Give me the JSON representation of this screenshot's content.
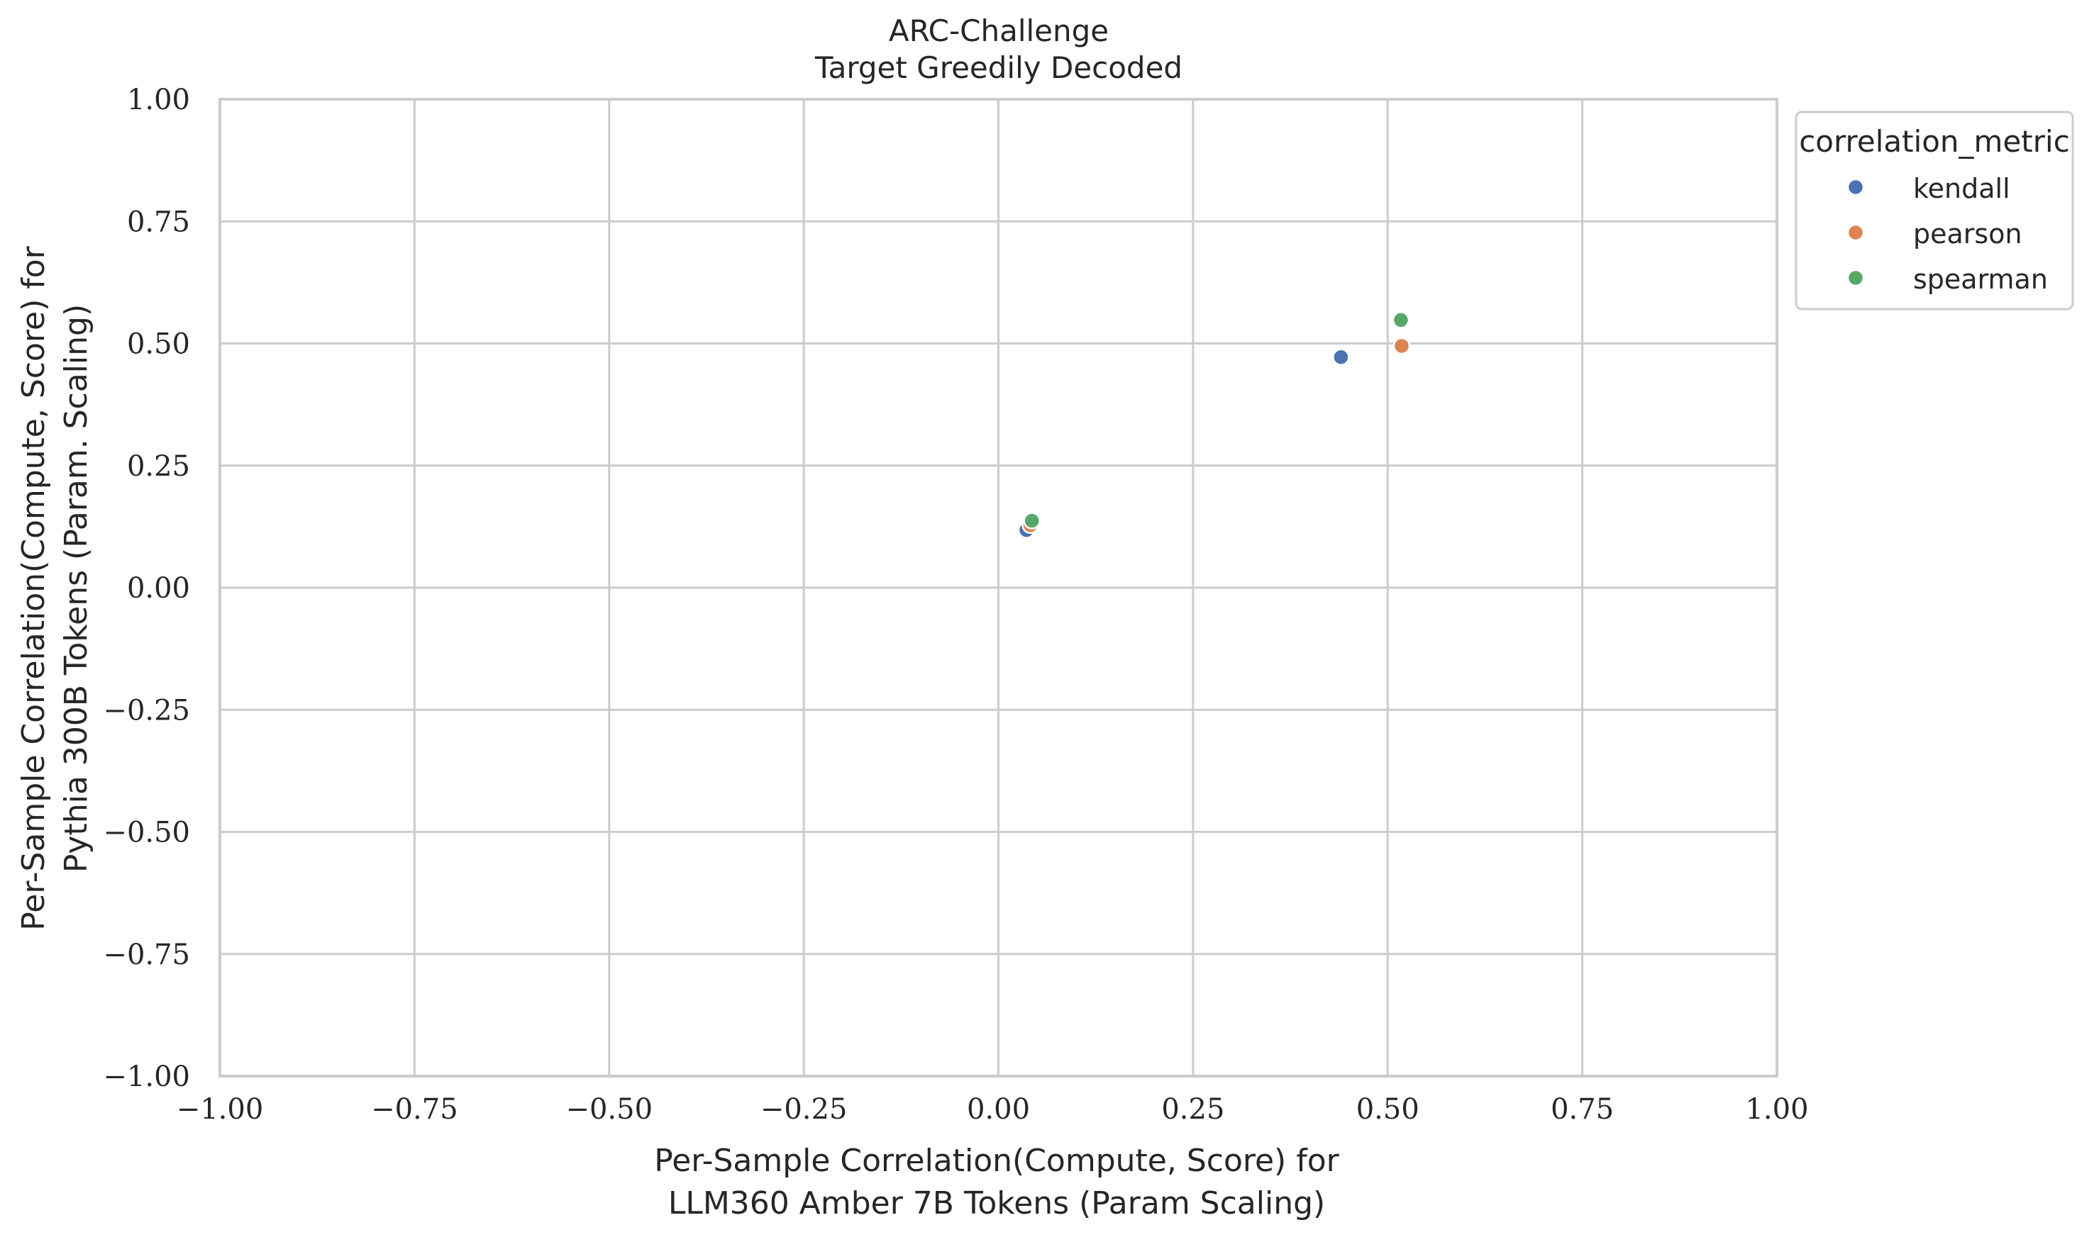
{
  "chart_data": {
    "type": "scatter",
    "title": [
      "ARC-Challenge",
      "Target Greedily Decoded"
    ],
    "xlabel": [
      "Per-Sample Correlation(Compute, Score) for",
      "LLM360 Amber 7B Tokens (Param Scaling)"
    ],
    "ylabel": [
      "Per-Sample Correlation(Compute, Score) for",
      "Pythia 300B Tokens (Param. Scaling)"
    ],
    "xlim": [
      -1.0,
      1.0
    ],
    "ylim": [
      -1.0,
      1.0
    ],
    "xticks": [
      -1.0,
      -0.75,
      -0.5,
      -0.25,
      0.0,
      0.25,
      0.5,
      0.75,
      1.0
    ],
    "yticks": [
      -1.0,
      -0.75,
      -0.5,
      -0.25,
      0.0,
      0.25,
      0.5,
      0.75,
      1.0
    ],
    "xtick_labels": [
      "−1.00",
      "−0.75",
      "−0.50",
      "−0.25",
      "0.00",
      "0.25",
      "0.50",
      "0.75",
      "1.00"
    ],
    "ytick_labels": [
      "−1.00",
      "−0.75",
      "−0.50",
      "−0.25",
      "0.00",
      "0.25",
      "0.50",
      "0.75",
      "1.00"
    ],
    "grid": true,
    "legend": {
      "title": "correlation_metric",
      "placement": "outside-top-right"
    },
    "series": [
      {
        "name": "kendall",
        "color": "#4c72b0",
        "points": [
          [
            0.036,
            0.118
          ],
          [
            0.44,
            0.472
          ]
        ]
      },
      {
        "name": "pearson",
        "color": "#dd8452",
        "points": [
          [
            0.041,
            0.128
          ],
          [
            0.518,
            0.495
          ]
        ]
      },
      {
        "name": "spearman",
        "color": "#55a868",
        "points": [
          [
            0.043,
            0.137
          ],
          [
            0.517,
            0.548
          ]
        ]
      }
    ]
  }
}
